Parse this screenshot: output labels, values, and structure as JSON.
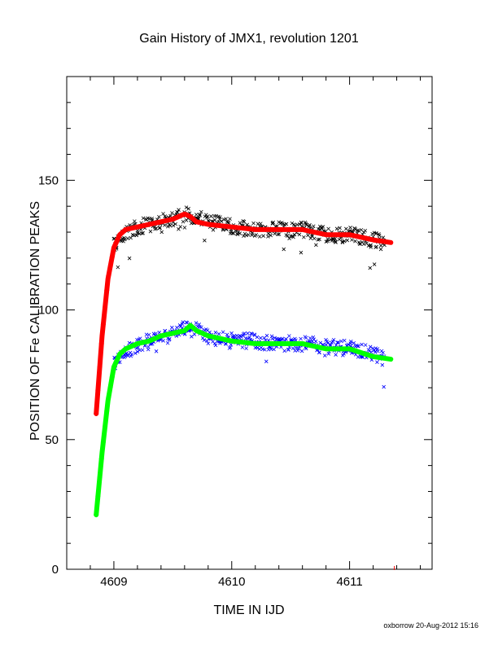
{
  "chart_data": {
    "type": "scatter",
    "title": "Gain History of JMX1, revolution 1201",
    "xlabel": "TIME IN IJD",
    "ylabel": "POSITION OF Fe CALIBRATION PEAKS",
    "xlim": [
      4608.6,
      4611.7
    ],
    "ylim": [
      0,
      190
    ],
    "xticks": [
      4609,
      4610,
      4611
    ],
    "yticks": [
      0,
      50,
      100,
      150
    ],
    "grid": false,
    "legend": "none",
    "series": [
      {
        "marker": "x",
        "color": "#000000",
        "role": "peak-1-measured",
        "x": [
          4609.0,
          4609.1,
          4609.2,
          4609.3,
          4609.4,
          4609.5,
          4609.6,
          4609.7,
          4609.8,
          4609.9,
          4610.0,
          4610.2,
          4610.4,
          4610.6,
          4610.8,
          4611.0,
          4611.2,
          4611.3
        ],
        "y": [
          125,
          129,
          132,
          133,
          134,
          135,
          137,
          136,
          134,
          133,
          132,
          131,
          131,
          131,
          129,
          129,
          127,
          126
        ]
      },
      {
        "marker": "line",
        "color": "#ff0000",
        "role": "peak-1-fit",
        "x": [
          4608.85,
          4608.9,
          4608.95,
          4609.0,
          4609.05,
          4609.1,
          4609.2,
          4609.3,
          4609.4,
          4609.5,
          4609.6,
          4609.65,
          4609.7,
          4609.8,
          4610.0,
          4610.2,
          4610.4,
          4610.6,
          4610.8,
          4611.0,
          4611.2,
          4611.35
        ],
        "y": [
          60,
          90,
          112,
          124,
          129,
          131,
          132,
          133,
          134,
          135,
          137,
          136,
          134,
          133,
          132,
          131,
          131,
          131,
          129,
          129,
          127,
          126
        ]
      },
      {
        "marker": "x",
        "color": "#0000ff",
        "role": "peak-2-measured",
        "x": [
          4609.0,
          4609.1,
          4609.2,
          4609.3,
          4609.4,
          4609.5,
          4609.6,
          4609.7,
          4609.8,
          4609.9,
          4610.0,
          4610.2,
          4610.4,
          4610.6,
          4610.8,
          4611.0,
          4611.2,
          4611.3
        ],
        "y": [
          80,
          84,
          86,
          88,
          89,
          91,
          93,
          92,
          90,
          89,
          88,
          88,
          87,
          87,
          86,
          85,
          83,
          81
        ]
      },
      {
        "marker": "line",
        "color": "#00ff00",
        "role": "peak-2-fit",
        "x": [
          4608.85,
          4608.9,
          4608.95,
          4609.0,
          4609.05,
          4609.1,
          4609.2,
          4609.3,
          4609.4,
          4609.5,
          4609.6,
          4609.65,
          4609.7,
          4609.8,
          4610.0,
          4610.2,
          4610.4,
          4610.6,
          4610.8,
          4611.0,
          4611.2,
          4611.35
        ],
        "y": [
          21,
          45,
          65,
          78,
          83,
          85,
          87,
          88,
          90,
          91,
          92,
          94,
          92,
          90,
          88,
          87,
          87,
          87,
          85,
          85,
          82,
          81
        ]
      }
    ]
  },
  "footer": "oxborrow 20-Aug-2012 15:16"
}
